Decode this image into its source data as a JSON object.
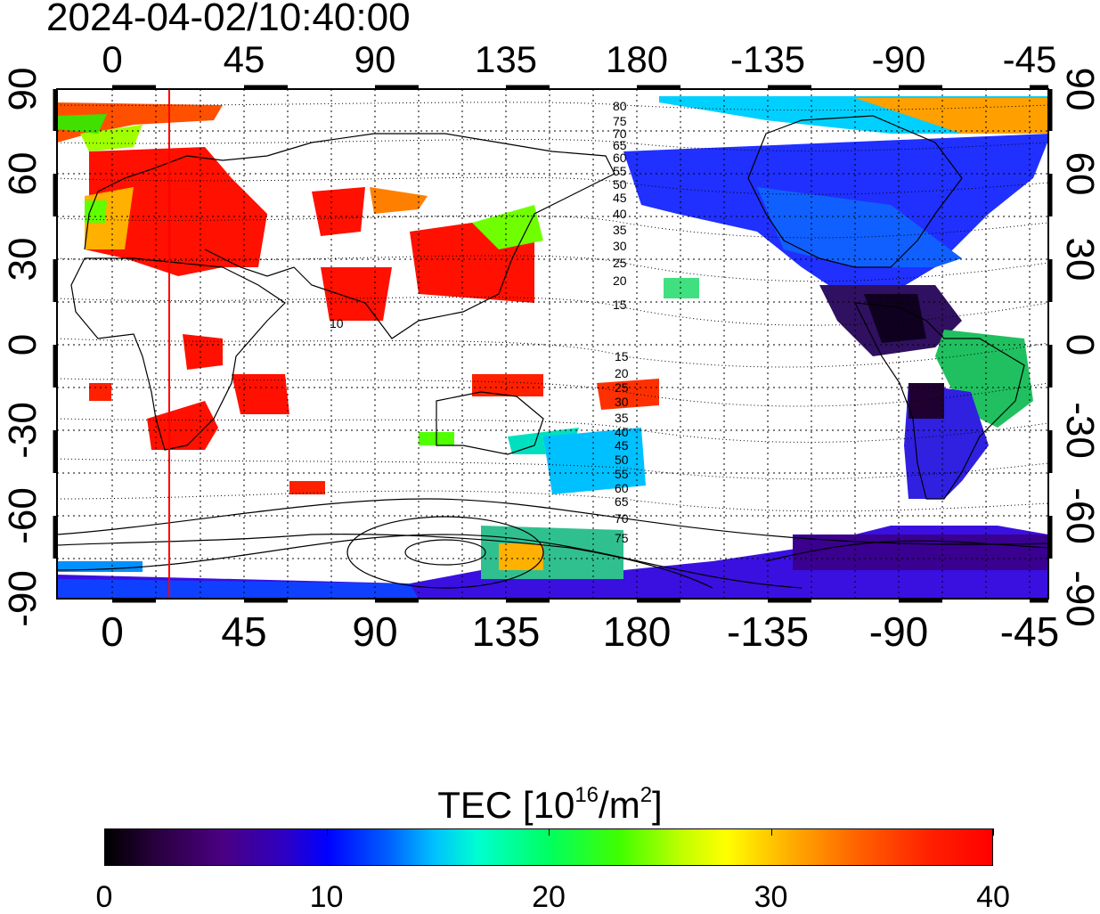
{
  "timestamp": "2024-04-02/10:40:00",
  "top_lon_ticks": [
    "0",
    "45",
    "90",
    "135",
    "180",
    "-135",
    "-90",
    "-45"
  ],
  "bottom_lon_ticks": [
    "0",
    "45",
    "90",
    "135",
    "180",
    "-135",
    "-90",
    "-45"
  ],
  "left_lat_ticks": [
    "90",
    "60",
    "30",
    "0",
    "-30",
    "-60",
    "-90"
  ],
  "right_lat_ticks": [
    "90",
    "60",
    "30",
    "0",
    "-30",
    "-60",
    "-90"
  ],
  "contour_labels_north": [
    "80",
    "75",
    "70",
    "65",
    "60",
    "55",
    "50",
    "45",
    "40",
    "35",
    "30",
    "25",
    "20",
    "15"
  ],
  "contour_labels_south": [
    "15",
    "20",
    "25",
    "30",
    "35",
    "40",
    "45",
    "50",
    "55",
    "60",
    "65",
    "70",
    "75"
  ],
  "contour_label_extra": "10",
  "colorbar": {
    "title_prefix": "TEC  [10",
    "title_exp1": "16",
    "title_mid": "/m",
    "title_exp2": "2",
    "title_suffix": "]",
    "labels": [
      "0",
      "10",
      "20",
      "30",
      "40"
    ],
    "min": 0,
    "max": 40,
    "colors": [
      "#000000",
      "#4a0080",
      "#0000ff",
      "#00ffd0",
      "#00ff60",
      "#ffff00",
      "#ff6000",
      "#ff0000"
    ]
  },
  "map": {
    "projection": "equirectangular",
    "lon_range": [
      -20,
      320
    ],
    "lat_range": [
      -90,
      90
    ],
    "marker_longitude": 20,
    "marker_color": "#ff0000"
  }
}
